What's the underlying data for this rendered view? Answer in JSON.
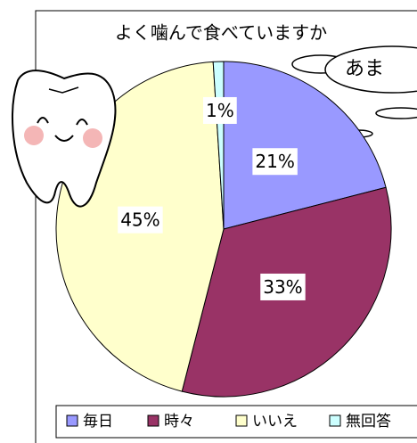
{
  "chart_data": {
    "type": "pie",
    "title": "よく噛んで食べていますか",
    "annotation": "あま",
    "categories": [
      "毎日",
      "時々",
      "いいえ",
      "無回答"
    ],
    "values": [
      21,
      33,
      45,
      1
    ],
    "value_labels": [
      "21%",
      "33%",
      "45%",
      "1%"
    ],
    "colors": [
      "#9999ff",
      "#993366",
      "#ffffcc",
      "#ccffff"
    ],
    "legend": "bottom"
  }
}
